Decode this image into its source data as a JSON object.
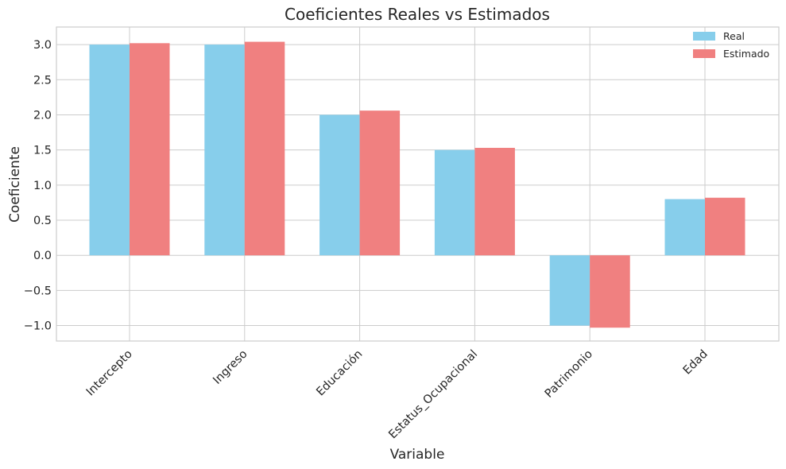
{
  "chart_data": {
    "type": "bar",
    "title": "Coeficientes Reales vs Estimados",
    "xlabel": "Variable",
    "ylabel": "Coeficiente",
    "categories": [
      "Intercepto",
      "Ingreso",
      "Educación",
      "Estatus_Ocupacional",
      "Patrimonio",
      "Edad"
    ],
    "series": [
      {
        "name": "Real",
        "color": "#87ceeb",
        "values": [
          3.0,
          3.0,
          2.0,
          1.5,
          -1.0,
          0.8
        ]
      },
      {
        "name": "Estimado",
        "color": "#f08080",
        "values": [
          3.02,
          3.04,
          2.06,
          1.53,
          -1.03,
          0.82
        ]
      }
    ],
    "ylim": [
      -1.22,
      3.25
    ],
    "yticks": [
      -1.0,
      -0.5,
      0.0,
      0.5,
      1.0,
      1.5,
      2.0,
      2.5,
      3.0
    ],
    "ytick_labels": [
      "−1.0",
      "−0.5",
      "0.0",
      "0.5",
      "1.0",
      "1.5",
      "2.0",
      "2.5",
      "3.0"
    ],
    "grid": true,
    "legend_position": "top-right"
  }
}
